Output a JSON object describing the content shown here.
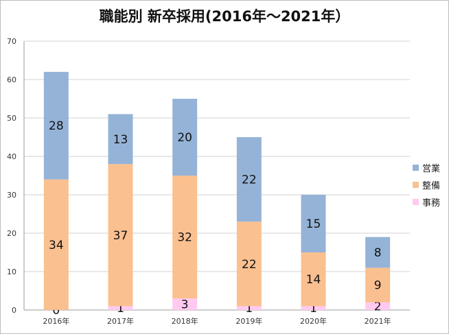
{
  "title": "職能別  新卒採用(2016年～2021年）",
  "chart_data": {
    "type": "bar",
    "stacked": true,
    "title": "職能別  新卒採用(2016年～2021年）",
    "categories": [
      "2016年",
      "2017年",
      "2018年",
      "2019年",
      "2020年",
      "2021年"
    ],
    "series": [
      {
        "name": "事務",
        "color": "#ffc9f0",
        "values": [
          0,
          1,
          3,
          1,
          1,
          2
        ]
      },
      {
        "name": "整備",
        "color": "#fac090",
        "values": [
          34,
          37,
          32,
          22,
          14,
          9
        ]
      },
      {
        "name": "営業",
        "color": "#95b3d7",
        "values": [
          28,
          13,
          20,
          22,
          15,
          8
        ]
      }
    ],
    "ylim": [
      0,
      70
    ],
    "yticks": [
      0,
      10,
      20,
      30,
      40,
      50,
      60,
      70
    ],
    "grid": true,
    "legend": "right"
  }
}
